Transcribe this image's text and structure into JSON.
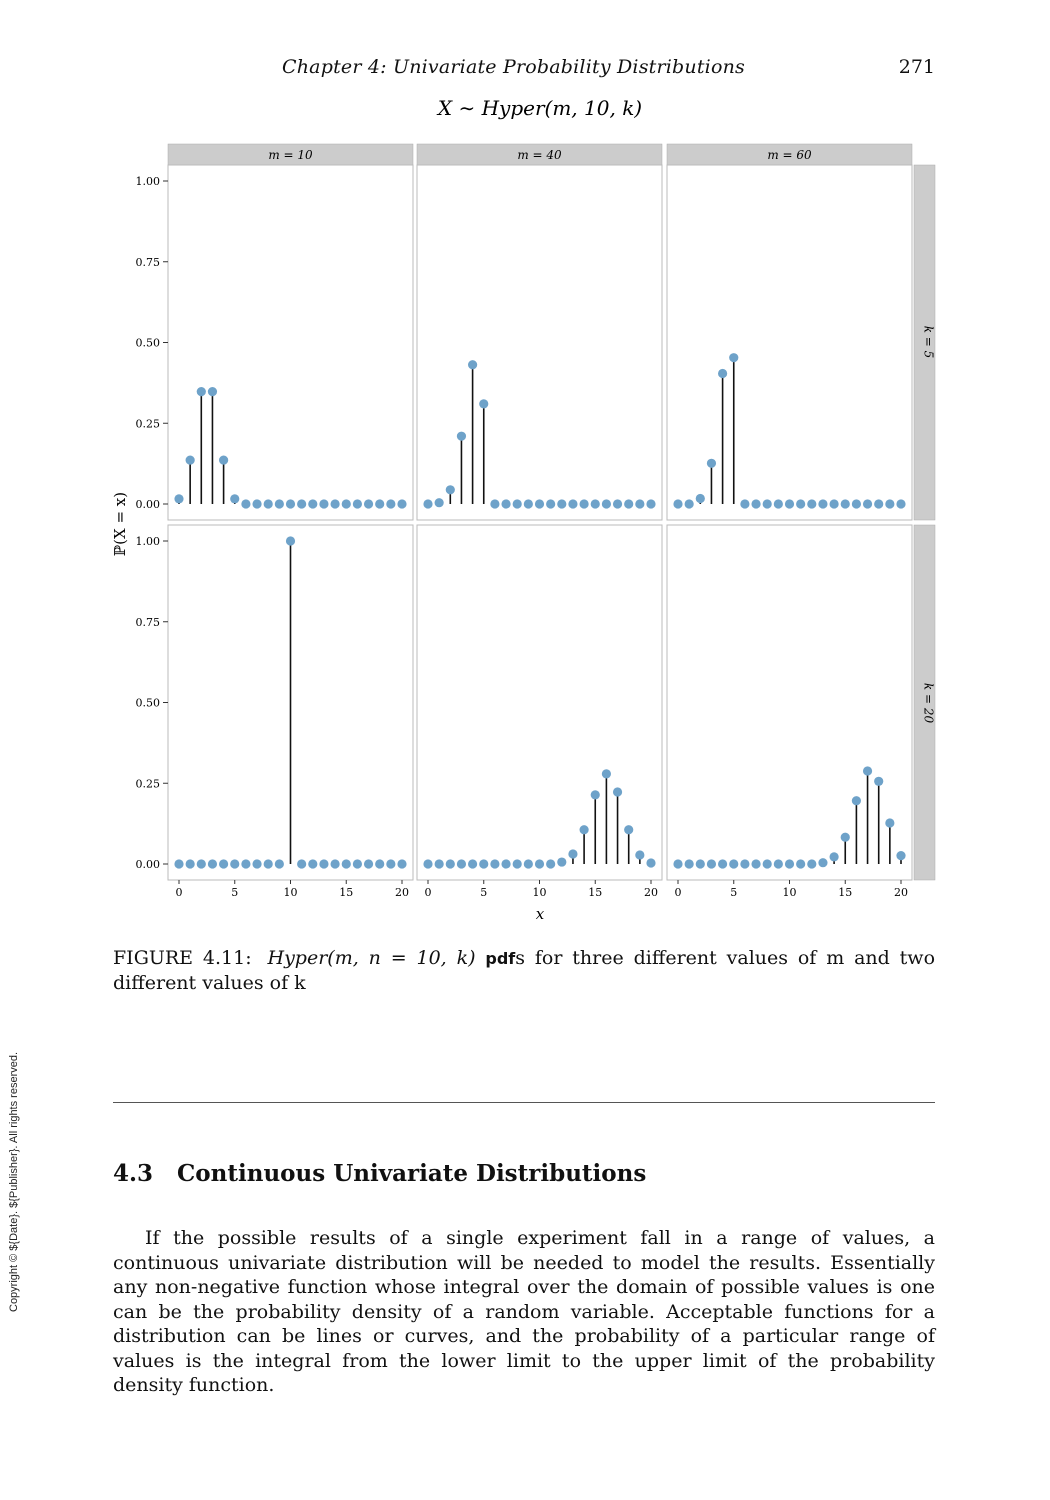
{
  "header": {
    "running_title": "Chapter 4:   Univariate Probability Distributions",
    "page_number": "271"
  },
  "figure": {
    "plot_title": "X ∼ Hyper(m, 10, k)",
    "caption_label": "FIGURE 4.11:",
    "caption_formula": "Hyper(m, n = 10, k)",
    "caption_abbrev": "pdf",
    "caption_rest": "s for three different values of m and two different values of k"
  },
  "chart_data": {
    "type": "scatter",
    "style": "lollipop / stem plot, facet grid",
    "title": "X ∼ Hyper(m, 10, k)",
    "xlabel": "x",
    "ylabel": "ℙ(X = x)",
    "xlim": [
      0,
      20
    ],
    "ylim": [
      0,
      1
    ],
    "x_ticks": [
      "0",
      "5",
      "10",
      "15",
      "20"
    ],
    "y_ticks": [
      "0.00",
      "0.25",
      "0.50",
      "0.75",
      "1.00"
    ],
    "column_strips": [
      "m = 10",
      "m = 40",
      "m = 60"
    ],
    "row_strips": [
      "k = 5",
      "k = 20"
    ],
    "grid": false,
    "point_color": "#6ea2c9",
    "stem_color": "#111111",
    "strip_color": "#cccccc",
    "x": [
      0,
      1,
      2,
      3,
      4,
      5,
      6,
      7,
      8,
      9,
      10,
      11,
      12,
      13,
      14,
      15,
      16,
      17,
      18,
      19,
      20
    ],
    "panels": [
      {
        "m": "10",
        "k": "5",
        "values": [
          0.016,
          0.136,
          0.348,
          0.348,
          0.136,
          0.016,
          0,
          0,
          0,
          0,
          0,
          0,
          0,
          0,
          0,
          0,
          0,
          0,
          0,
          0,
          0
        ]
      },
      {
        "m": "40",
        "k": "5",
        "values": [
          0.0,
          0.004,
          0.044,
          0.21,
          0.431,
          0.31,
          0,
          0,
          0,
          0,
          0,
          0,
          0,
          0,
          0,
          0,
          0,
          0,
          0,
          0,
          0
        ]
      },
      {
        "m": "60",
        "k": "5",
        "values": [
          0.0,
          0.0,
          0.017,
          0.126,
          0.404,
          0.453,
          0,
          0,
          0,
          0,
          0,
          0,
          0,
          0,
          0,
          0,
          0,
          0,
          0,
          0,
          0
        ]
      },
      {
        "m": "10",
        "k": "20",
        "values": [
          0,
          0,
          0,
          0,
          0,
          0,
          0,
          0,
          0,
          0,
          1.0,
          0,
          0,
          0,
          0,
          0,
          0,
          0,
          0,
          0,
          0
        ]
      },
      {
        "m": "40",
        "k": "20",
        "values": [
          0,
          0,
          0,
          0,
          0,
          0,
          0,
          0,
          0,
          0,
          0,
          0,
          0.006,
          0.031,
          0.106,
          0.214,
          0.279,
          0.223,
          0.106,
          0.028,
          0.003
        ]
      },
      {
        "m": "60",
        "k": "20",
        "values": [
          0,
          0,
          0,
          0,
          0,
          0,
          0,
          0,
          0,
          0,
          0,
          0,
          0,
          0.004,
          0.022,
          0.083,
          0.196,
          0.288,
          0.256,
          0.127,
          0.026
        ]
      }
    ]
  },
  "section": {
    "number": "4.3",
    "title": "Continuous Univariate Distributions",
    "paragraph": "If the possible results of a single experiment fall in a range of values, a continuous univariate distribution will be needed to model the results. Essentially any non-negative function whose integral over the domain of possible values is one can be the probability density of a random variable. Acceptable functions for a distribution can be lines or curves, and the probability of a particular range of values is the integral from the lower limit to the upper limit of the probability density function."
  },
  "footer": {
    "copyright": "Copyright © ${Date}. ${Publisher}. All rights reserved."
  }
}
